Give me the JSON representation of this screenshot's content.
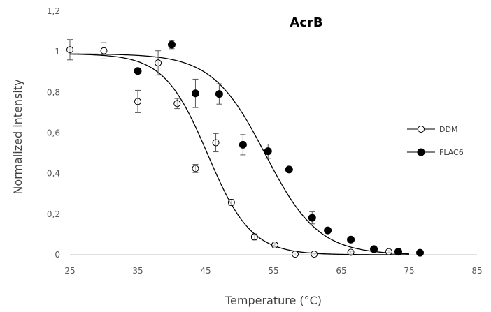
{
  "chart_data": {
    "type": "scatter",
    "title": "AcrB",
    "xlabel": "Temperature (°C)",
    "ylabel": "Normalized intensity",
    "xlim": [
      25,
      85
    ],
    "ylim": [
      0,
      1.2
    ],
    "x_ticks": [
      25,
      35,
      45,
      55,
      65,
      75,
      85
    ],
    "x_tick_labels": [
      "25",
      "35",
      "45",
      "55",
      "65",
      "75",
      "85"
    ],
    "y_ticks": [
      0,
      0.2,
      0.4,
      0.6,
      0.8,
      1.0,
      1.2
    ],
    "y_tick_labels": [
      "0",
      "0,2",
      "0,4",
      "0,6",
      "0,8",
      "1",
      "1,2"
    ],
    "grid": false,
    "legend_position": "right",
    "series": [
      {
        "name": "DDM",
        "marker": "open-circle",
        "color": "#000000",
        "points": [
          {
            "x": 25.0,
            "y": 1.01,
            "err": 0.05
          },
          {
            "x": 30.0,
            "y": 1.005,
            "err": 0.04
          },
          {
            "x": 35.0,
            "y": 0.755,
            "err": 0.055
          },
          {
            "x": 38.0,
            "y": 0.945,
            "err": 0.06
          },
          {
            "x": 40.8,
            "y": 0.745,
            "err": 0.025
          },
          {
            "x": 43.5,
            "y": 0.425,
            "err": 0.02
          },
          {
            "x": 46.5,
            "y": 0.552,
            "err": 0.045
          },
          {
            "x": 48.8,
            "y": 0.258,
            "err": 0.015
          },
          {
            "x": 52.2,
            "y": 0.088,
            "err": 0.015
          },
          {
            "x": 55.2,
            "y": 0.048,
            "err": 0.01
          },
          {
            "x": 58.2,
            "y": 0.003,
            "err": 0.005
          },
          {
            "x": 61.0,
            "y": 0.003,
            "err": 0.005
          },
          {
            "x": 66.4,
            "y": 0.012,
            "err": 0.005
          },
          {
            "x": 72.0,
            "y": 0.015,
            "err": 0.005
          }
        ],
        "fit": {
          "model": "sigmoid",
          "top": 0.99,
          "bottom": 0.0,
          "tm": 45.3,
          "slope": 3.2
        }
      },
      {
        "name": "FLAC6",
        "marker": "filled-circle",
        "color": "#000000",
        "points": [
          {
            "x": 35.0,
            "y": 0.905,
            "err": 0.0
          },
          {
            "x": 40.0,
            "y": 1.035,
            "err": 0.02
          },
          {
            "x": 43.5,
            "y": 0.795,
            "err": 0.07
          },
          {
            "x": 47.0,
            "y": 0.792,
            "err": 0.05
          },
          {
            "x": 50.5,
            "y": 0.542,
            "err": 0.05
          },
          {
            "x": 54.2,
            "y": 0.51,
            "err": 0.035
          },
          {
            "x": 57.3,
            "y": 0.42,
            "err": 0.0
          },
          {
            "x": 60.7,
            "y": 0.182,
            "err": 0.03
          },
          {
            "x": 63.0,
            "y": 0.12,
            "err": 0.0
          },
          {
            "x": 66.4,
            "y": 0.075,
            "err": 0.0
          },
          {
            "x": 69.8,
            "y": 0.028,
            "err": 0.0
          },
          {
            "x": 73.4,
            "y": 0.015,
            "err": 0.0
          },
          {
            "x": 76.6,
            "y": 0.01,
            "err": 0.0
          }
        ],
        "fit": {
          "model": "sigmoid",
          "top": 0.99,
          "bottom": 0.0,
          "tm": 53.8,
          "slope": 3.9
        }
      }
    ]
  }
}
